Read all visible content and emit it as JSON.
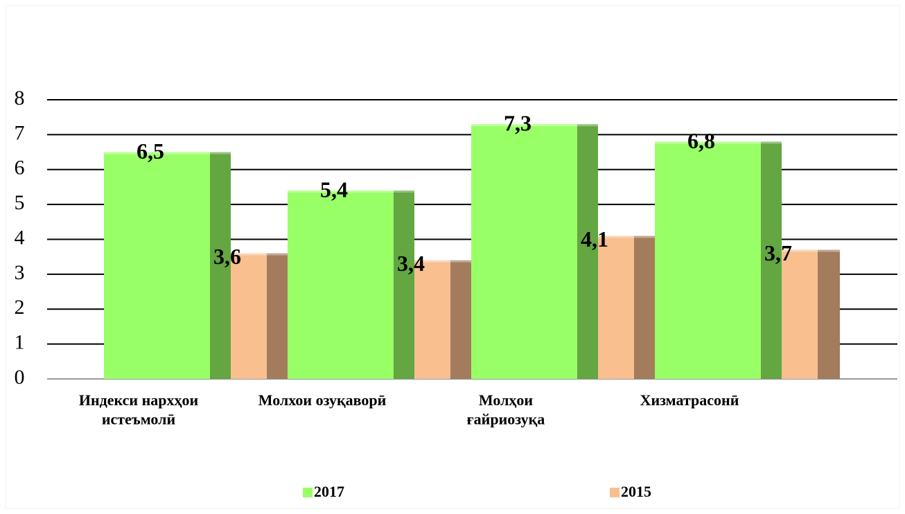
{
  "chart_data": {
    "type": "bar",
    "categories": [
      "Индекси нархҳои\nистеъмолӣ",
      "Молхои озуқаворӣ",
      "Молҳои\nғайриозуқа",
      "Хизматрасонӣ"
    ],
    "series": [
      {
        "name": "2017",
        "color": "#99ff66",
        "values": [
          6.5,
          5.4,
          7.3,
          6.8
        ],
        "value_labels": [
          "6,5",
          "5,4",
          "7,3",
          "6,8"
        ]
      },
      {
        "name": "2015",
        "color": "#f9bf8f",
        "values": [
          3.6,
          3.4,
          4.1,
          3.7
        ],
        "value_labels": [
          "3,6",
          "3,4",
          "4,1",
          "3,7"
        ]
      }
    ],
    "ylim": [
      0,
      8
    ],
    "yticks": [
      0,
      1,
      2,
      3,
      4,
      5,
      6,
      7,
      8
    ],
    "grid": true,
    "legend": "bottom"
  }
}
